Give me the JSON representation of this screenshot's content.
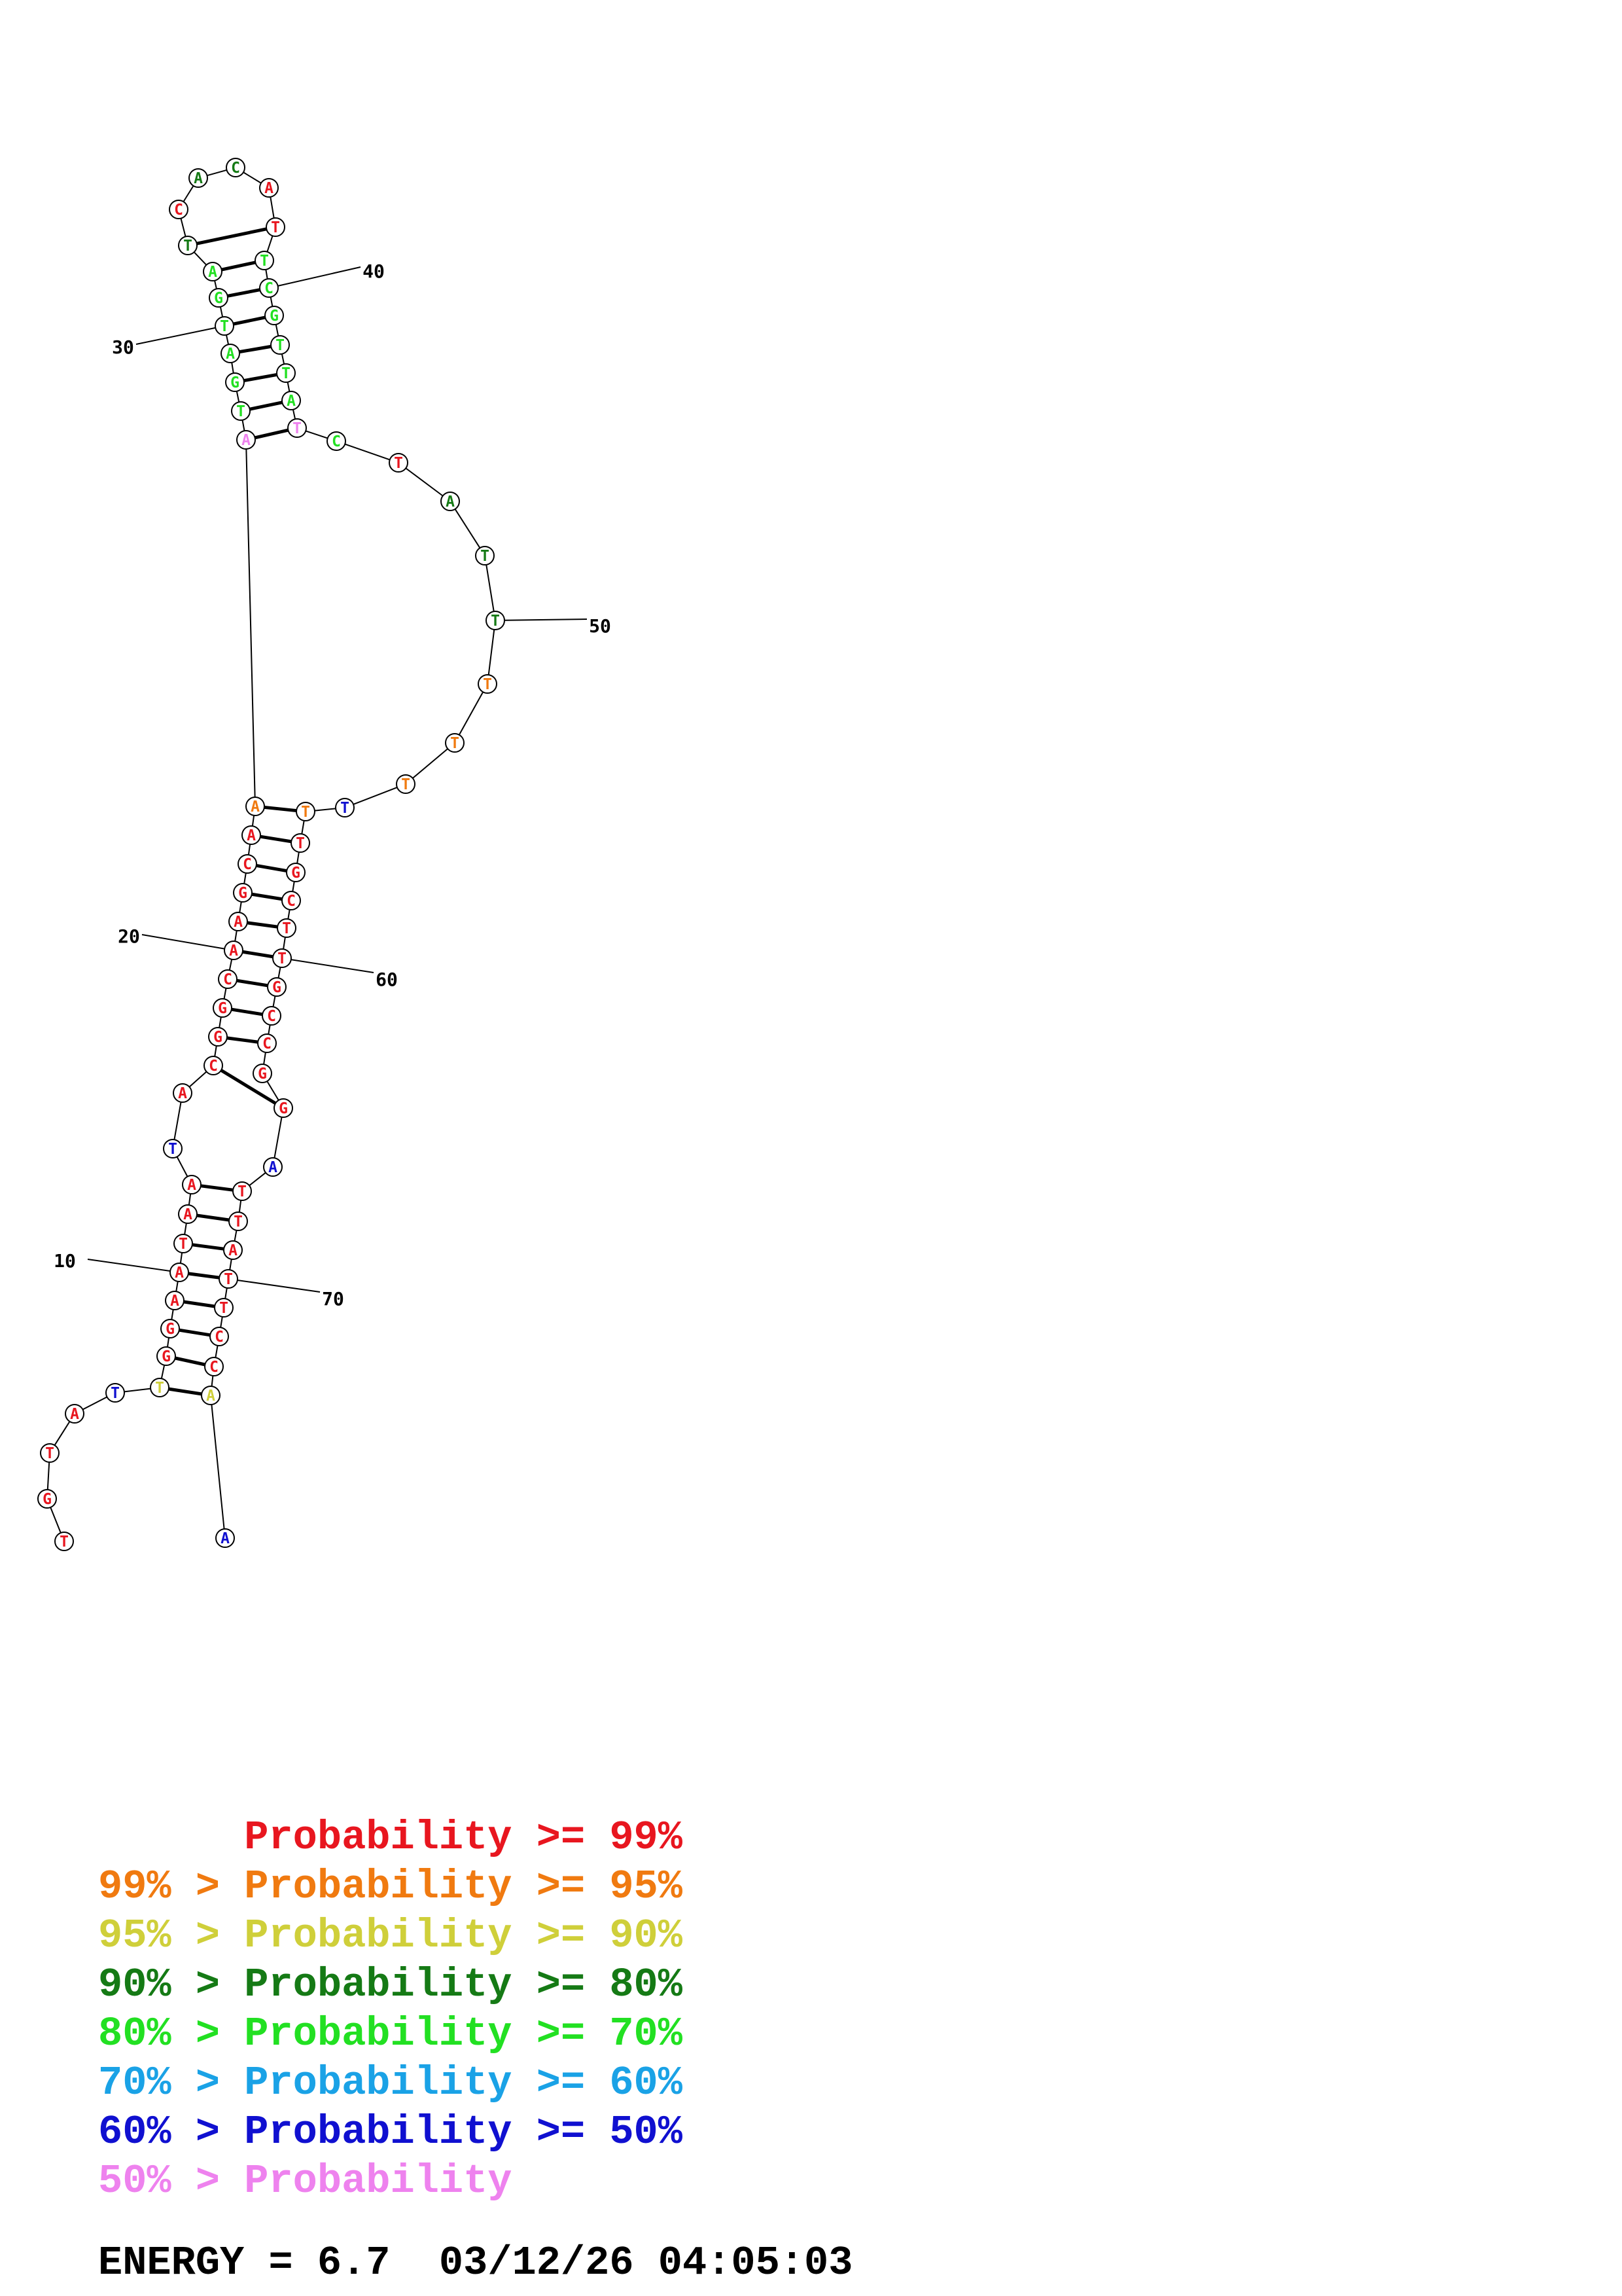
{
  "colors": {
    "ge99": "#e8161f",
    "ge95": "#f07a10",
    "ge90": "#cfcf3a",
    "ge80": "#157a15",
    "ge70": "#22e022",
    "ge60": "#1aa2e6",
    "ge50": "#1010d0",
    "lt50": "#ee82ee"
  },
  "structure": {
    "bases": [
      {
        "n": 1,
        "b": "T",
        "c": "ge99"
      },
      {
        "n": 2,
        "b": "G",
        "c": "ge99"
      },
      {
        "n": 3,
        "b": "T",
        "c": "ge99"
      },
      {
        "n": 4,
        "b": "A",
        "c": "ge99"
      },
      {
        "n": 5,
        "b": "T",
        "c": "ge50"
      },
      {
        "n": 6,
        "b": "T",
        "c": "ge90"
      },
      {
        "n": 7,
        "b": "G",
        "c": "ge99"
      },
      {
        "n": 8,
        "b": "G",
        "c": "ge99"
      },
      {
        "n": 9,
        "b": "A",
        "c": "ge99"
      },
      {
        "n": 10,
        "b": "A",
        "c": "ge99"
      },
      {
        "n": 11,
        "b": "T",
        "c": "ge99"
      },
      {
        "n": 12,
        "b": "A",
        "c": "ge99"
      },
      {
        "n": 13,
        "b": "A",
        "c": "ge99"
      },
      {
        "n": 14,
        "b": "T",
        "c": "ge50"
      },
      {
        "n": 15,
        "b": "A",
        "c": "ge99"
      },
      {
        "n": 16,
        "b": "C",
        "c": "ge99"
      },
      {
        "n": 17,
        "b": "G",
        "c": "ge99"
      },
      {
        "n": 18,
        "b": "G",
        "c": "ge99"
      },
      {
        "n": 19,
        "b": "C",
        "c": "ge99"
      },
      {
        "n": 20,
        "b": "A",
        "c": "ge99"
      },
      {
        "n": 21,
        "b": "A",
        "c": "ge99"
      },
      {
        "n": 22,
        "b": "G",
        "c": "ge99"
      },
      {
        "n": 23,
        "b": "C",
        "c": "ge99"
      },
      {
        "n": 24,
        "b": "A",
        "c": "ge99"
      },
      {
        "n": 25,
        "b": "A",
        "c": "ge95"
      },
      {
        "n": 26,
        "b": "A",
        "c": "lt50"
      },
      {
        "n": 27,
        "b": "T",
        "c": "ge70"
      },
      {
        "n": 28,
        "b": "G",
        "c": "ge70"
      },
      {
        "n": 29,
        "b": "A",
        "c": "ge70"
      },
      {
        "n": 30,
        "b": "T",
        "c": "ge70"
      },
      {
        "n": 31,
        "b": "G",
        "c": "ge70"
      },
      {
        "n": 32,
        "b": "A",
        "c": "ge70"
      },
      {
        "n": 33,
        "b": "T",
        "c": "ge80"
      },
      {
        "n": 34,
        "b": "C",
        "c": "ge99"
      },
      {
        "n": 35,
        "b": "A",
        "c": "ge80"
      },
      {
        "n": 36,
        "b": "C",
        "c": "ge80"
      },
      {
        "n": 37,
        "b": "A",
        "c": "ge99"
      },
      {
        "n": 38,
        "b": "T",
        "c": "ge99"
      },
      {
        "n": 39,
        "b": "T",
        "c": "ge70"
      },
      {
        "n": 40,
        "b": "C",
        "c": "ge70"
      },
      {
        "n": 41,
        "b": "G",
        "c": "ge70"
      },
      {
        "n": 42,
        "b": "T",
        "c": "ge70"
      },
      {
        "n": 43,
        "b": "T",
        "c": "ge70"
      },
      {
        "n": 44,
        "b": "A",
        "c": "ge70"
      },
      {
        "n": 45,
        "b": "T",
        "c": "lt50"
      },
      {
        "n": 46,
        "b": "C",
        "c": "ge70"
      },
      {
        "n": 47,
        "b": "T",
        "c": "ge99"
      },
      {
        "n": 48,
        "b": "A",
        "c": "ge80"
      },
      {
        "n": 49,
        "b": "T",
        "c": "ge80"
      },
      {
        "n": 50,
        "b": "T",
        "c": "ge80"
      },
      {
        "n": 51,
        "b": "T",
        "c": "ge95"
      },
      {
        "n": 52,
        "b": "T",
        "c": "ge95"
      },
      {
        "n": 53,
        "b": "T",
        "c": "ge95"
      },
      {
        "n": 54,
        "b": "T",
        "c": "ge50"
      },
      {
        "n": 55,
        "b": "T",
        "c": "ge95"
      },
      {
        "n": 56,
        "b": "T",
        "c": "ge99"
      },
      {
        "n": 57,
        "b": "G",
        "c": "ge99"
      },
      {
        "n": 58,
        "b": "C",
        "c": "ge99"
      },
      {
        "n": 59,
        "b": "T",
        "c": "ge99"
      },
      {
        "n": 60,
        "b": "T",
        "c": "ge99"
      },
      {
        "n": 61,
        "b": "G",
        "c": "ge99"
      },
      {
        "n": 62,
        "b": "C",
        "c": "ge99"
      },
      {
        "n": 63,
        "b": "C",
        "c": "ge99"
      },
      {
        "n": 64,
        "b": "G",
        "c": "ge99"
      },
      {
        "n": 65,
        "b": "G",
        "c": "ge99"
      },
      {
        "n": 66,
        "b": "A",
        "c": "ge50"
      },
      {
        "n": 67,
        "b": "T",
        "c": "ge99"
      },
      {
        "n": 68,
        "b": "T",
        "c": "ge99"
      },
      {
        "n": 69,
        "b": "A",
        "c": "ge99"
      },
      {
        "n": 70,
        "b": "T",
        "c": "ge99"
      },
      {
        "n": 71,
        "b": "T",
        "c": "ge99"
      },
      {
        "n": 72,
        "b": "C",
        "c": "ge99"
      },
      {
        "n": 73,
        "b": "C",
        "c": "ge99"
      },
      {
        "n": 74,
        "b": "A",
        "c": "ge90"
      },
      {
        "n": 75,
        "b": "A",
        "c": "ge50"
      }
    ],
    "pairs": [
      [
        6,
        74
      ],
      [
        7,
        73
      ],
      [
        8,
        72
      ],
      [
        9,
        71
      ],
      [
        10,
        70
      ],
      [
        11,
        69
      ],
      [
        12,
        68
      ],
      [
        13,
        67
      ],
      [
        16,
        65
      ],
      [
        17,
        63
      ],
      [
        18,
        62
      ],
      [
        19,
        61
      ],
      [
        20,
        60
      ],
      [
        21,
        59
      ],
      [
        22,
        58
      ],
      [
        23,
        57
      ],
      [
        24,
        56
      ],
      [
        25,
        55
      ],
      [
        26,
        45
      ],
      [
        27,
        44
      ],
      [
        28,
        43
      ],
      [
        29,
        42
      ],
      [
        30,
        41
      ],
      [
        31,
        40
      ],
      [
        32,
        39
      ],
      [
        33,
        38
      ]
    ],
    "tick_labels": [
      {
        "n": 10,
        "text": "10"
      },
      {
        "n": 20,
        "text": "20"
      },
      {
        "n": 30,
        "text": "30"
      },
      {
        "n": 40,
        "text": "40"
      },
      {
        "n": 50,
        "text": "50"
      },
      {
        "n": 60,
        "text": "60"
      },
      {
        "n": 70,
        "text": "70"
      }
    ]
  },
  "legend": [
    {
      "left": "",
      "prob": "Probability",
      "right": ">= 99%",
      "color": "ge99"
    },
    {
      "left": "99% >",
      "prob": "Probability",
      "right": ">= 95%",
      "color": "ge95"
    },
    {
      "left": "95% >",
      "prob": "Probability",
      "right": ">= 90%",
      "color": "ge90"
    },
    {
      "left": "90% >",
      "prob": "Probability",
      "right": ">= 80%",
      "color": "ge80"
    },
    {
      "left": "80% >",
      "prob": "Probability",
      "right": ">= 70%",
      "color": "ge70"
    },
    {
      "left": "70% >",
      "prob": "Probability",
      "right": ">= 60%",
      "color": "ge60"
    },
    {
      "left": "60% >",
      "prob": "Probability",
      "right": ">= 50%",
      "color": "ge50"
    },
    {
      "left": "50% >",
      "prob": "Probability",
      "right": "",
      "color": "lt50"
    }
  ],
  "footer": {
    "energy_label": "ENERGY = 6.7",
    "timestamp": "03/12/26 04:05:03"
  }
}
